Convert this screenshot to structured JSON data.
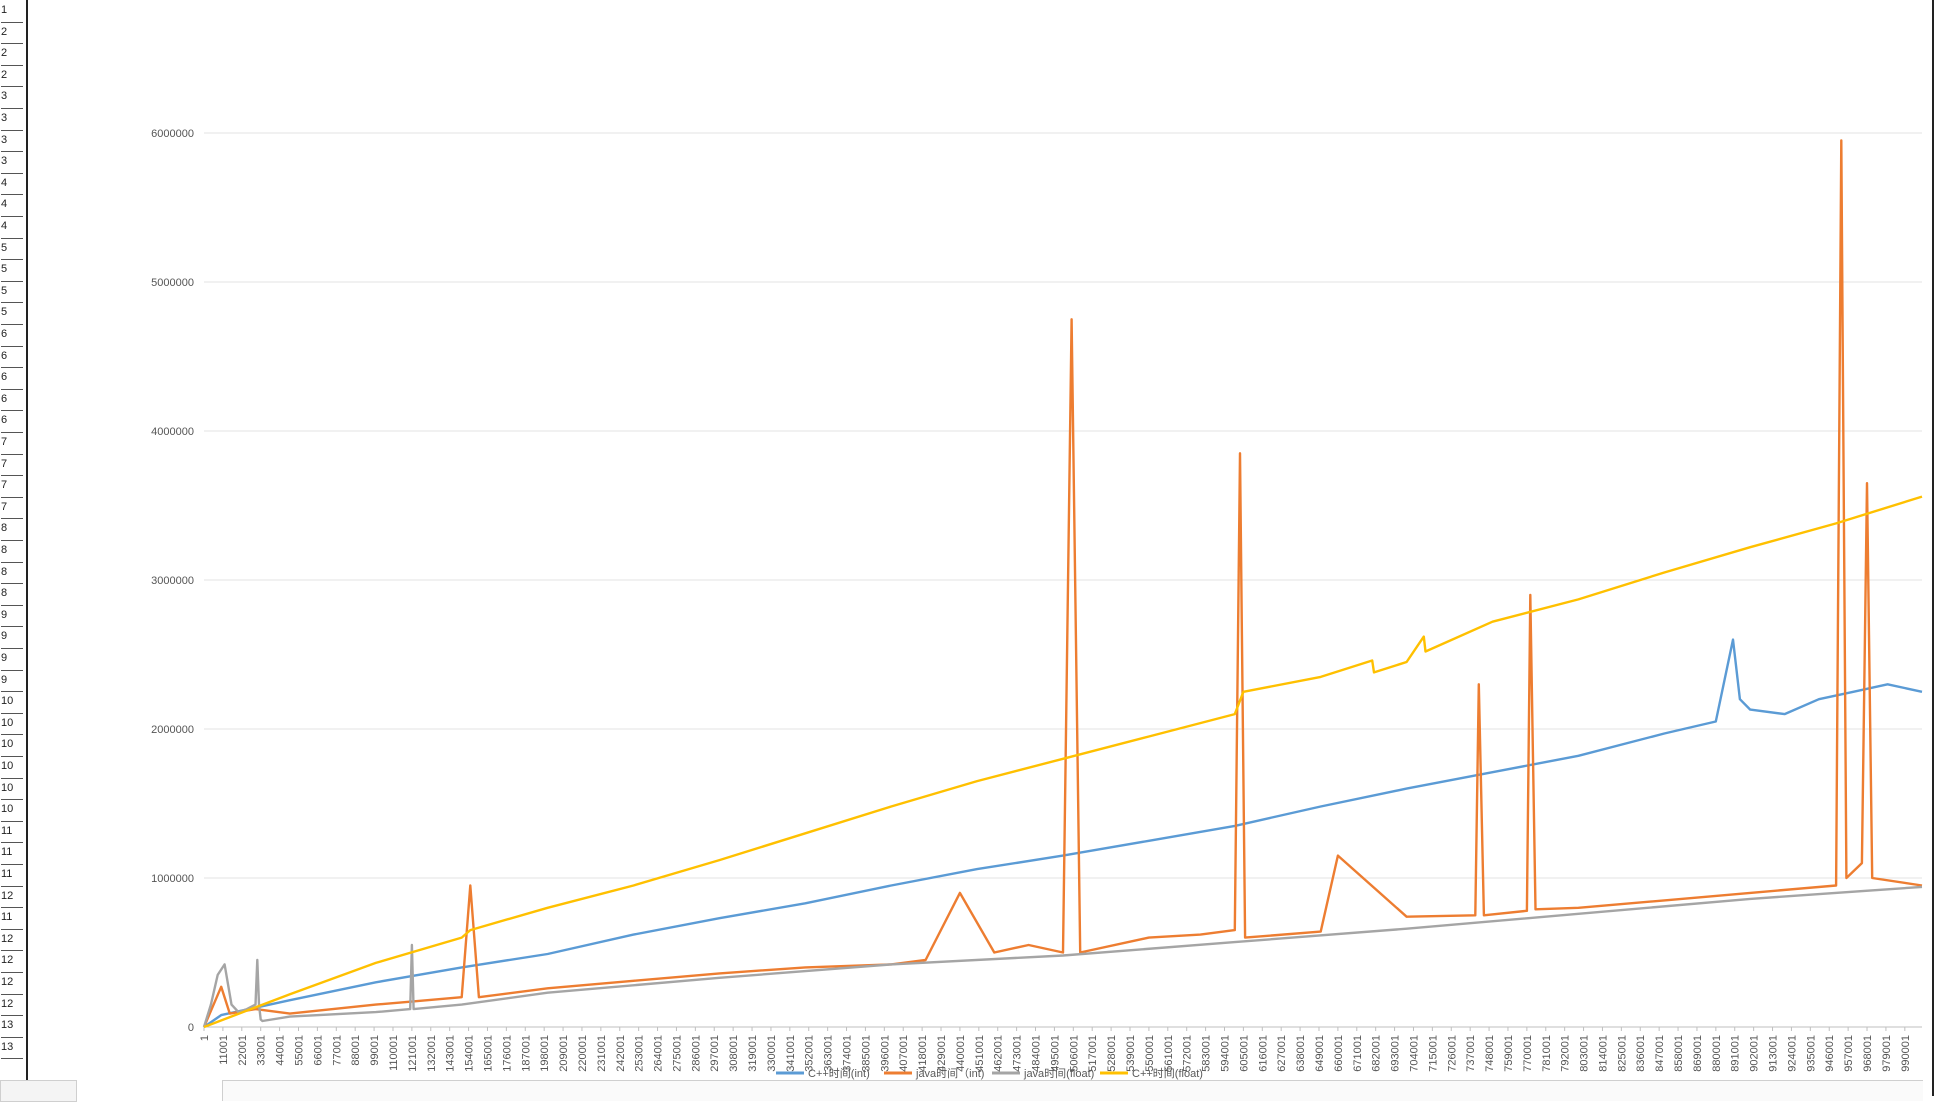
{
  "spreadsheet": {
    "row_labels": [
      "1",
      "2",
      "2",
      "2",
      "3",
      "3",
      "3",
      "3",
      "4",
      "4",
      "4",
      "5",
      "5",
      "5",
      "5",
      "6",
      "6",
      "6",
      "6",
      "6",
      "7",
      "7",
      "7",
      "7",
      "8",
      "8",
      "8",
      "8",
      "9",
      "9",
      "9",
      "9",
      "10",
      "10",
      "10",
      "10",
      "10",
      "10",
      "11",
      "11",
      "11",
      "12",
      "11",
      "12",
      "12",
      "12",
      "12",
      "13",
      "13"
    ]
  },
  "chart_data": {
    "type": "line",
    "title": "",
    "xlabel": "",
    "ylabel": "",
    "ylim": [
      0,
      6000000
    ],
    "y_ticks": [
      "0",
      "1000000",
      "2000000",
      "3000000",
      "4000000",
      "5000000",
      "6000000"
    ],
    "x_ticks": [
      "1",
      "11001",
      "22001",
      "33001",
      "44001",
      "55001",
      "66001",
      "77001",
      "88001",
      "99001",
      "110001",
      "121001",
      "132001",
      "143001",
      "154001",
      "165001",
      "176001",
      "187001",
      "198001",
      "209001",
      "220001",
      "231001",
      "242001",
      "253001",
      "264001",
      "275001",
      "286001",
      "297001",
      "308001",
      "319001",
      "330001",
      "341001",
      "352001",
      "363001",
      "374001",
      "385001",
      "396001",
      "407001",
      "418001",
      "429001",
      "440001",
      "451001",
      "462001",
      "473001",
      "484001",
      "495001",
      "506001",
      "517001",
      "528001",
      "539001",
      "550001",
      "561001",
      "572001",
      "583001",
      "594001",
      "605001",
      "616001",
      "627001",
      "638001",
      "649001",
      "660001",
      "671001",
      "682001",
      "693001",
      "704001",
      "715001",
      "726001",
      "737001",
      "748001",
      "759001",
      "770001",
      "781001",
      "792001",
      "803001",
      "814001",
      "825001",
      "836001",
      "847001",
      "858001",
      "869001",
      "880001",
      "891001",
      "902001",
      "913001",
      "924001",
      "935001",
      "946001",
      "957001",
      "968001",
      "979001",
      "990001"
    ],
    "xlim": [
      1,
      1000001
    ],
    "grid": true,
    "legend_position": "bottom",
    "series": [
      {
        "name": "C++时间(int)",
        "color": "#5b9bd5",
        "x": [
          1,
          10001,
          50001,
          100001,
          150001,
          200001,
          250001,
          300001,
          350001,
          400001,
          450001,
          500001,
          550001,
          600001,
          650001,
          700001,
          750001,
          800001,
          850001,
          880001,
          890001,
          894001,
          900001,
          920001,
          940001,
          960001,
          980001,
          1000001
        ],
        "y": [
          0,
          80000,
          180000,
          300000,
          400000,
          490000,
          620000,
          730000,
          830000,
          950000,
          1060000,
          1150000,
          1250000,
          1350000,
          1480000,
          1600000,
          1710000,
          1820000,
          1970000,
          2050000,
          2600000,
          2200000,
          2130000,
          2100000,
          2200000,
          2250000,
          2300000,
          2250000
        ]
      },
      {
        "name": "java时间（int)",
        "color": "#ed7d31",
        "x": [
          1,
          10001,
          15001,
          20001,
          30001,
          50001,
          100001,
          120001,
          150001,
          155001,
          160001,
          200001,
          250001,
          300001,
          350001,
          400001,
          420001,
          440001,
          460001,
          480001,
          500001,
          505001,
          510001,
          550001,
          580001,
          600001,
          603001,
          606001,
          650001,
          660001,
          700001,
          740001,
          742001,
          745001,
          770001,
          772001,
          775001,
          800001,
          850001,
          900001,
          950001,
          953001,
          956001,
          965001,
          968001,
          971001,
          1000001
        ],
        "y": [
          0,
          270000,
          90000,
          100000,
          120000,
          90000,
          150000,
          170000,
          200000,
          950000,
          200000,
          260000,
          310000,
          360000,
          400000,
          420000,
          450000,
          900000,
          500000,
          550000,
          500000,
          4750000,
          500000,
          600000,
          620000,
          650000,
          3850000,
          600000,
          640000,
          1150000,
          740000,
          750000,
          2300000,
          750000,
          780000,
          2900000,
          790000,
          800000,
          850000,
          900000,
          950000,
          5950000,
          1000000,
          1100000,
          3650000,
          1000000,
          950000
        ]
      },
      {
        "name": "java时间(float)",
        "color": "#a5a5a5",
        "x": [
          1,
          4001,
          8001,
          12001,
          16001,
          20001,
          25001,
          30001,
          31001,
          32001,
          33001,
          34001,
          50001,
          100001,
          120001,
          121001,
          122001,
          150001,
          200001,
          300001,
          400001,
          500001,
          600001,
          700001,
          800001,
          900001,
          1000001
        ],
        "y": [
          0,
          150000,
          350000,
          420000,
          150000,
          100000,
          120000,
          150000,
          450000,
          150000,
          50000,
          40000,
          70000,
          100000,
          120000,
          550000,
          120000,
          150000,
          230000,
          330000,
          420000,
          480000,
          570000,
          660000,
          760000,
          860000,
          940000
        ]
      },
      {
        "name": "C++时间(float)",
        "color": "#ffc000",
        "x": [
          1,
          50001,
          100001,
          150001,
          155001,
          200001,
          250001,
          300001,
          350001,
          400001,
          450001,
          500001,
          550001,
          600001,
          605001,
          650001,
          680001,
          681001,
          700001,
          710001,
          711001,
          750001,
          800001,
          850001,
          900001,
          950001,
          1000001
        ],
        "y": [
          0,
          220000,
          430000,
          600000,
          650000,
          800000,
          950000,
          1120000,
          1300000,
          1480000,
          1650000,
          1800000,
          1950000,
          2100000,
          2250000,
          2350000,
          2460000,
          2380000,
          2450000,
          2620000,
          2520000,
          2720000,
          2870000,
          3050000,
          3220000,
          3380000,
          3560000
        ]
      }
    ]
  }
}
